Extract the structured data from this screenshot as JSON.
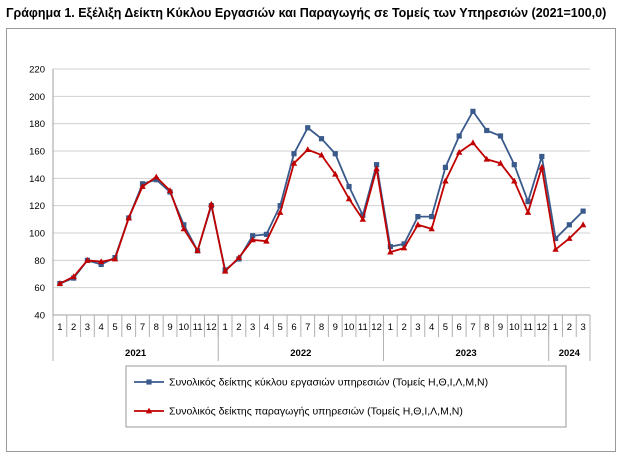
{
  "title": "Γράφημα 1. Εξέλιξη Δείκτη Κύκλου Εργασιών και Παραγωγής σε Τομείς των Υπηρεσιών (2021=100,0)",
  "chart_data": {
    "type": "line",
    "title": "Γράφημα 1. Εξέλιξη Δείκτη Κύκλου Εργασιών και Παραγωγής σε Τομείς των Υπηρεσιών (2021=100,0)",
    "xlabel": "",
    "ylabel": "",
    "ylim": [
      40,
      220
    ],
    "yticks": [
      40,
      60,
      80,
      100,
      120,
      140,
      160,
      180,
      200,
      220
    ],
    "grid": true,
    "legend_position": "bottom",
    "categories": [
      "1",
      "2",
      "3",
      "4",
      "5",
      "6",
      "7",
      "8",
      "9",
      "10",
      "11",
      "12",
      "1",
      "2",
      "3",
      "4",
      "5",
      "6",
      "7",
      "8",
      "9",
      "10",
      "11",
      "12",
      "1",
      "2",
      "3",
      "4",
      "5",
      "6",
      "7",
      "8",
      "9",
      "10",
      "11",
      "12",
      "1",
      "2",
      "3"
    ],
    "groups": [
      {
        "label": "2021",
        "count": 12
      },
      {
        "label": "2022",
        "count": 12
      },
      {
        "label": "2023",
        "count": 12
      },
      {
        "label": "2024",
        "count": 3
      }
    ],
    "series": [
      {
        "name": "Συνολικός δείκτης κύκλου εργασιών υπηρεσιών (Τομείς Η,Θ,Ι,Λ,Μ,Ν)",
        "color": "#3a5a8c",
        "marker": "square",
        "values": [
          63,
          67,
          80,
          77,
          82,
          111,
          136,
          139,
          130,
          106,
          87,
          120,
          73,
          81,
          98,
          99,
          120,
          158,
          177,
          169,
          158,
          134,
          113,
          150,
          90,
          92,
          112,
          112,
          148,
          171,
          189,
          175,
          171,
          150,
          123,
          156,
          96,
          106,
          116
        ]
      },
      {
        "name": "Συνολικός δείκτης παραγωγής υπηρεσιών (Τομείς Η,Θ,Ι,Λ,Μ,Ν)",
        "color": "#c00000",
        "marker": "triangle",
        "values": [
          63,
          68,
          80,
          79,
          81,
          111,
          134,
          141,
          131,
          103,
          87,
          121,
          72,
          82,
          95,
          94,
          115,
          151,
          161,
          157,
          143,
          125,
          110,
          147,
          86,
          89,
          106,
          103,
          138,
          159,
          166,
          154,
          151,
          138,
          115,
          148,
          88,
          96,
          106
        ]
      }
    ]
  }
}
